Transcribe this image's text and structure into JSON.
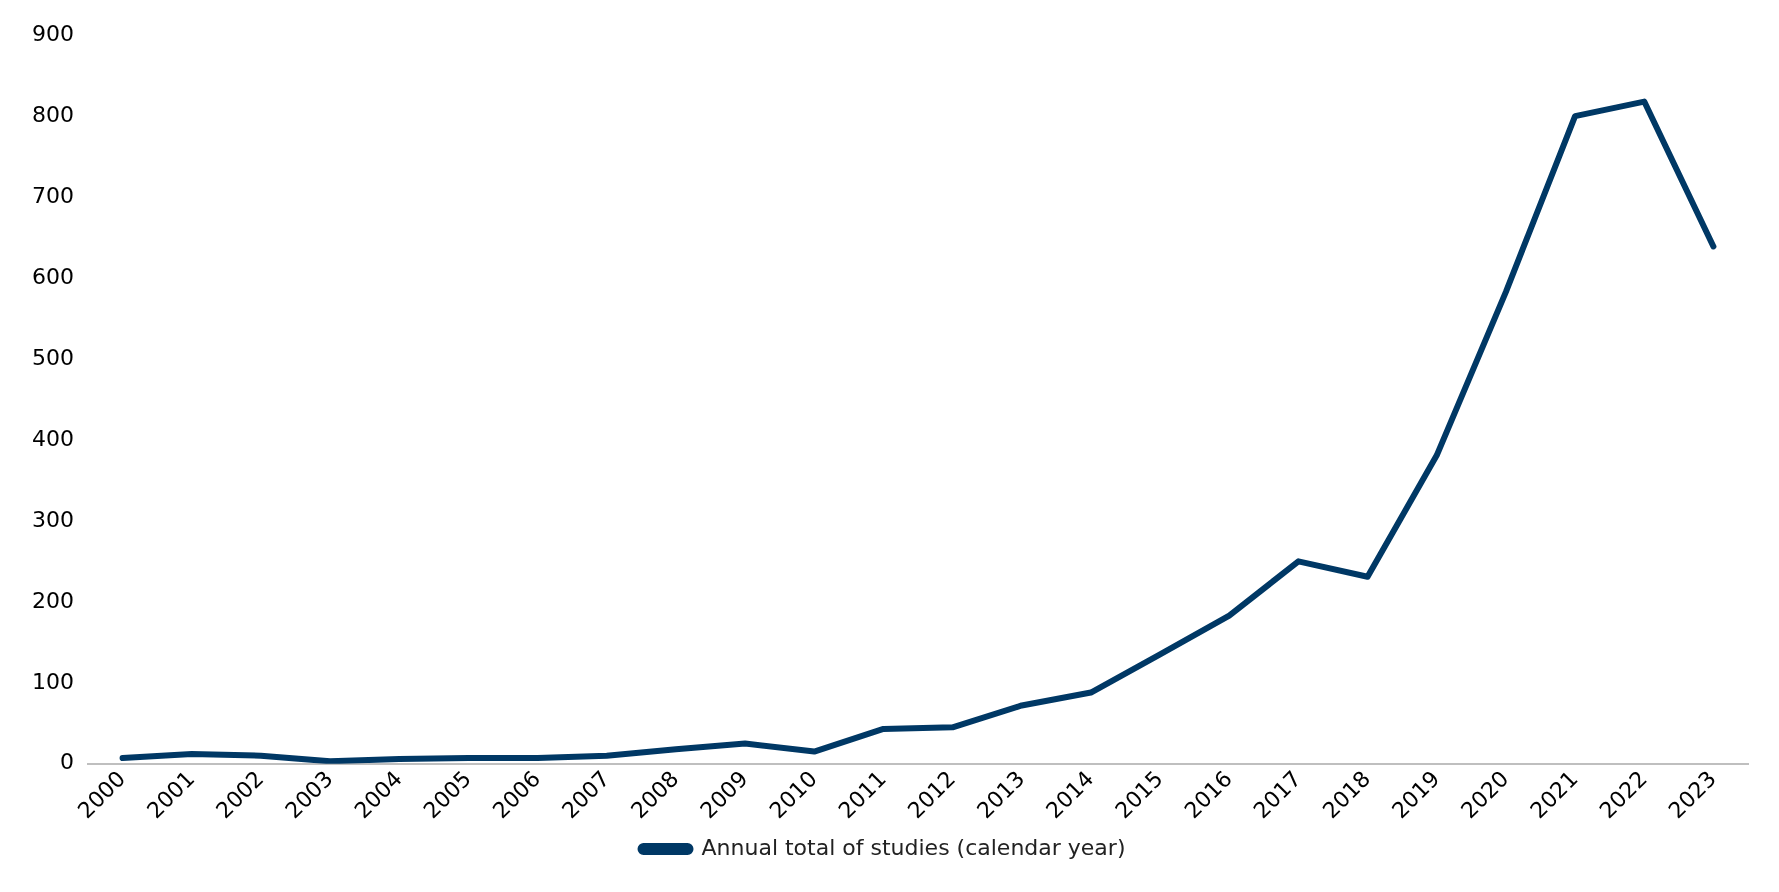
{
  "chart_data": {
    "type": "line",
    "categories": [
      "2000",
      "2001",
      "2002",
      "2003",
      "2004",
      "2005",
      "2006",
      "2007",
      "2008",
      "2009",
      "2010",
      "2011",
      "2012",
      "2013",
      "2014",
      "2015",
      "2016",
      "2017",
      "2018",
      "2019",
      "2020",
      "2021",
      "2022",
      "2023"
    ],
    "series": [
      {
        "name": "Annual total of studies (calendar year)",
        "color": "#003865",
        "values": [
          7,
          12,
          10,
          3,
          6,
          7,
          7,
          10,
          18,
          25,
          15,
          43,
          45,
          72,
          88,
          135,
          183,
          250,
          231,
          381,
          583,
          800,
          818,
          639
        ]
      }
    ],
    "ylim": [
      0,
      900
    ],
    "yticks": [
      0,
      100,
      200,
      300,
      400,
      500,
      600,
      700,
      800,
      900
    ],
    "grid": false,
    "legend": "bottom",
    "marker": "none",
    "line_style": "solid"
  }
}
